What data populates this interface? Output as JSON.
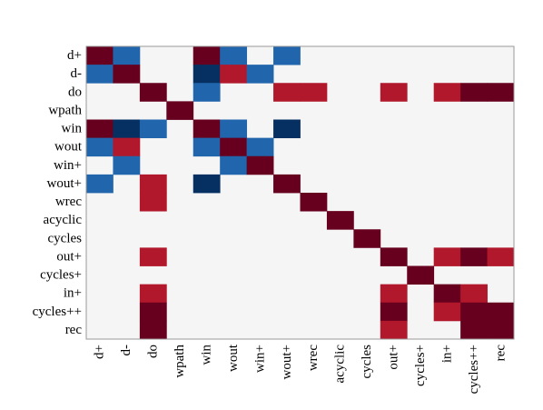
{
  "chart_data": {
    "type": "heatmap",
    "title": "",
    "xlabel": "",
    "ylabel": "",
    "grid": false,
    "legend": "none",
    "labels": [
      "d+",
      "d-",
      "do",
      "wpath",
      "win",
      "wout",
      "win+",
      "wout+",
      "wrec",
      "acyclic",
      "cycles",
      "out+",
      "cycles+",
      "in+",
      "cycles++",
      "rec"
    ],
    "value_range": [
      -1,
      1
    ],
    "colors": {
      "background": "#f5f5f5",
      "strong_positive": "#67001f",
      "positive": "#b2182b",
      "negative": "#2166ac",
      "strong_negative": "#053061",
      "frame": "#999999"
    },
    "matrix": [
      [
        1,
        -0.6,
        0,
        0,
        1,
        -0.6,
        0,
        -0.6,
        0,
        0,
        0,
        0,
        0,
        0,
        0,
        0
      ],
      [
        -0.6,
        1,
        0,
        0,
        -1,
        0.6,
        -0.6,
        0,
        0,
        0,
        0,
        0,
        0,
        0,
        0,
        0
      ],
      [
        0,
        0,
        1,
        0,
        -0.6,
        0,
        0,
        0.6,
        0.6,
        0,
        0,
        0.6,
        0,
        0.6,
        1,
        1
      ],
      [
        0,
        0,
        0,
        1,
        0,
        0,
        0,
        0,
        0,
        0,
        0,
        0,
        0,
        0,
        0,
        0
      ],
      [
        1,
        -1,
        -0.6,
        0,
        1,
        -0.6,
        0,
        -1,
        0,
        0,
        0,
        0,
        0,
        0,
        0,
        0
      ],
      [
        -0.6,
        0.6,
        0,
        0,
        -0.6,
        1,
        -0.6,
        0,
        0,
        0,
        0,
        0,
        0,
        0,
        0,
        0
      ],
      [
        0,
        -0.6,
        0,
        0,
        0,
        -0.6,
        1,
        0,
        0,
        0,
        0,
        0,
        0,
        0,
        0,
        0
      ],
      [
        -0.6,
        0,
        0.6,
        0,
        -1,
        0,
        0,
        1,
        0,
        0,
        0,
        0,
        0,
        0,
        0,
        0
      ],
      [
        0,
        0,
        0.6,
        0,
        0,
        0,
        0,
        0,
        1,
        0,
        0,
        0,
        0,
        0,
        0,
        0
      ],
      [
        0,
        0,
        0,
        0,
        0,
        0,
        0,
        0,
        0,
        1,
        0,
        0,
        0,
        0,
        0,
        0
      ],
      [
        0,
        0,
        0,
        0,
        0,
        0,
        0,
        0,
        0,
        0,
        1,
        0,
        0,
        0,
        0,
        0
      ],
      [
        0,
        0,
        0.6,
        0,
        0,
        0,
        0,
        0,
        0,
        0,
        0,
        1,
        0,
        0.6,
        1,
        0.6
      ],
      [
        0,
        0,
        0,
        0,
        0,
        0,
        0,
        0,
        0,
        0,
        0,
        0,
        1,
        0,
        0,
        0
      ],
      [
        0,
        0,
        0.6,
        0,
        0,
        0,
        0,
        0,
        0,
        0,
        0,
        0.6,
        0,
        1,
        0.6,
        0
      ],
      [
        0,
        0,
        1,
        0,
        0,
        0,
        0,
        0,
        0,
        0,
        0,
        1,
        0,
        0.6,
        1,
        1
      ],
      [
        0,
        0,
        1,
        0,
        0,
        0,
        0,
        0,
        0,
        0,
        0,
        0.6,
        0,
        0,
        1,
        1
      ]
    ]
  }
}
